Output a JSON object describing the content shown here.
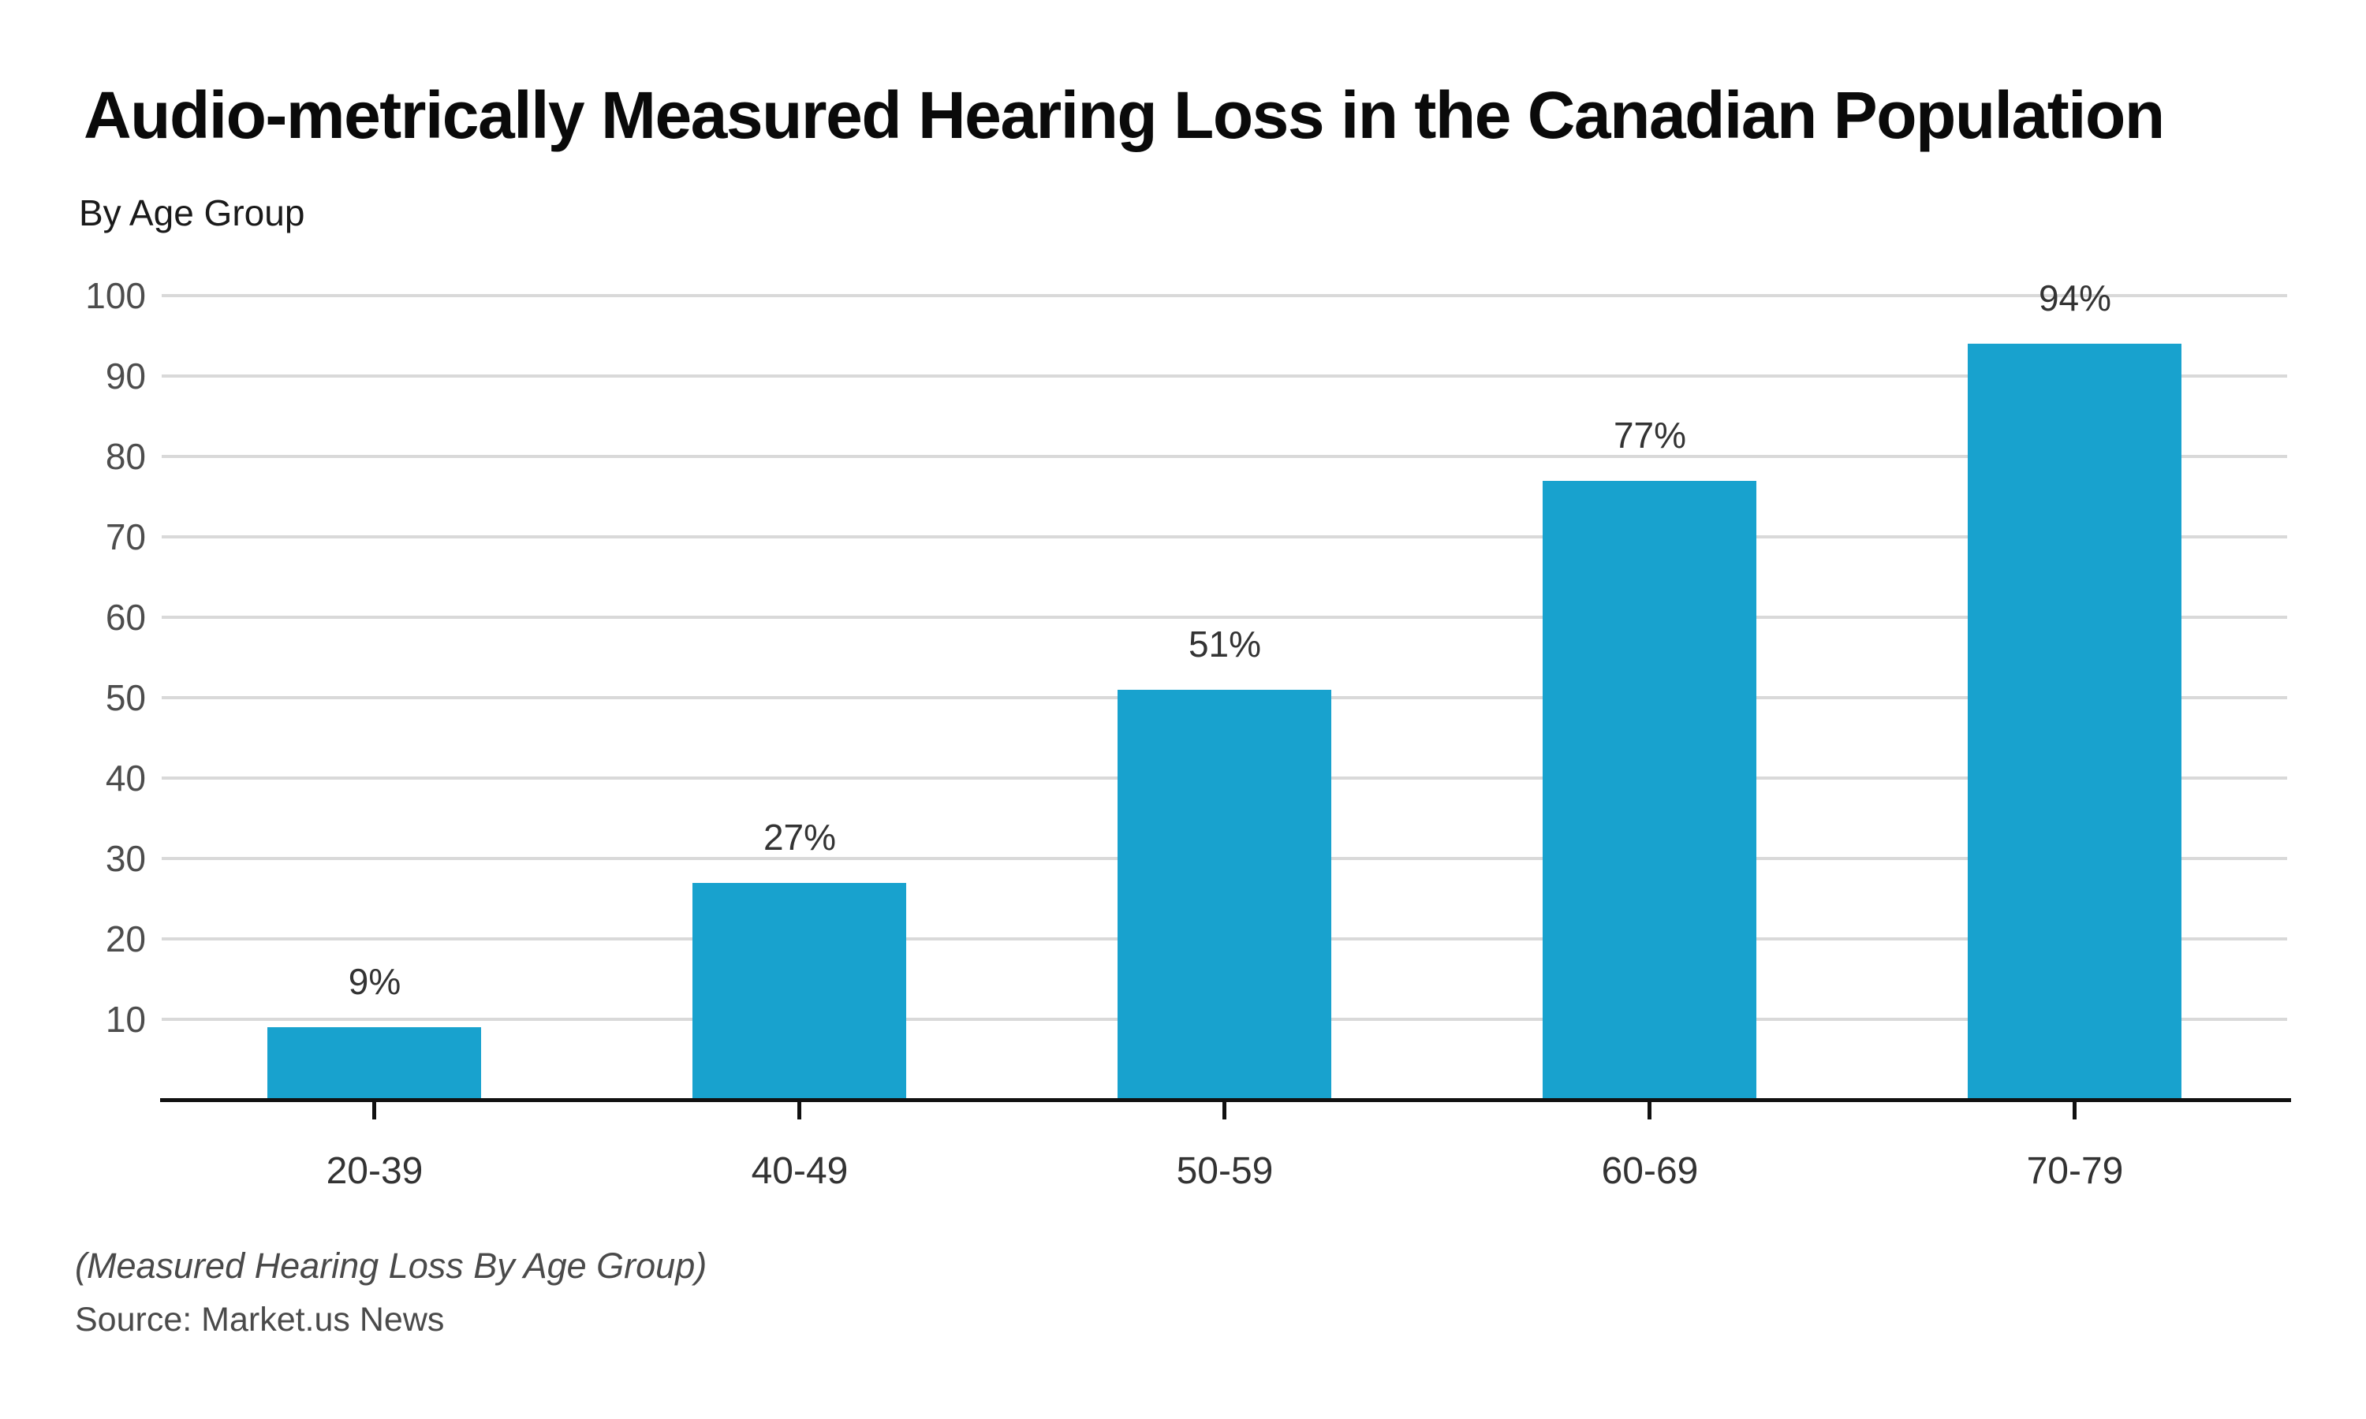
{
  "header": {
    "title": "Audio-metrically Measured Hearing Loss in the Canadian Population",
    "subtitle": "By Age Group"
  },
  "footer": {
    "footnote": "(Measured Hearing Loss By Age Group)",
    "source": "Source: Market.us News"
  },
  "chart_data": {
    "type": "bar",
    "categories": [
      "20-39",
      "40-49",
      "50-59",
      "60-69",
      "70-79"
    ],
    "values": [
      9,
      27,
      51,
      77,
      94
    ],
    "value_labels": [
      "9%",
      "27%",
      "51%",
      "77%",
      "94%"
    ],
    "title": "Audio-metrically Measured Hearing Loss in the Canadian Population",
    "subtitle": "By Age Group",
    "xlabel": "",
    "ylabel": "",
    "ylim": [
      0,
      100
    ],
    "yticks": [
      10,
      20,
      30,
      40,
      50,
      60,
      70,
      80,
      90,
      100
    ],
    "grid": "horizontal",
    "legend_position": "none",
    "colors": {
      "bar": "#18a2ce",
      "gridline": "#d9d9d9",
      "axis_line": "#111111",
      "y_tick_label": "#4d4d4d",
      "value_label": "#333333",
      "category_label": "#333333",
      "background": "#ffffff"
    }
  }
}
